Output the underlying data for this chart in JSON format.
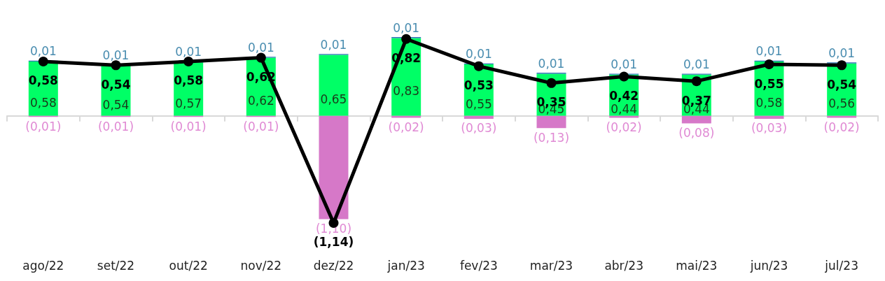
{
  "chart_data": {
    "type": "bar",
    "stacked": true,
    "tick_labels": "x",
    "grid": false,
    "categories": [
      "ago/22",
      "set/22",
      "out/22",
      "nov/22",
      "dez/22",
      "jan/23",
      "fev/23",
      "mar/23",
      "abr/23",
      "mai/23",
      "jun/23",
      "jul/23"
    ],
    "series": [
      {
        "color": "#00ff66",
        "values": [
          0.58,
          0.54,
          0.57,
          0.62,
          0.65,
          0.83,
          0.55,
          0.45,
          0.44,
          0.44,
          0.58,
          0.56
        ],
        "value_labels": [
          "0,58",
          "0,54",
          "0,57",
          "0,62",
          "0,65",
          "0,83",
          "0,55",
          "0,45",
          "0,44",
          "0,44",
          "0,58",
          "0,56"
        ]
      },
      {
        "color": "#2e75b6",
        "values": [
          0.01,
          0.01,
          0.01,
          0.01,
          0.01,
          0.01,
          0.01,
          0.01,
          0.01,
          0.01,
          0.01,
          0.01
        ],
        "value_labels": [
          "0,01",
          "0,01",
          "0,01",
          "0,01",
          "0,01",
          "0,01",
          "0,01",
          "0,01",
          "0,01",
          "0,01",
          "0,01",
          "0,01"
        ]
      },
      {
        "color": "#d678c8",
        "values": [
          -0.01,
          -0.01,
          -0.01,
          -0.01,
          -1.1,
          -0.02,
          -0.03,
          -0.13,
          -0.02,
          -0.08,
          -0.03,
          -0.02
        ],
        "value_labels": [
          "(0,01)",
          "(0,01)",
          "(0,01)",
          "(0,01)",
          "(1,10)",
          "(0,02)",
          "(0,03)",
          "(0,13)",
          "(0,02)",
          "(0,08)",
          "(0,03)",
          "(0,02)"
        ]
      },
      {
        "type": "line",
        "color": "#000000",
        "marker": "circle",
        "line_style": "solid",
        "values": [
          0.58,
          0.54,
          0.58,
          0.62,
          -1.14,
          0.82,
          0.53,
          0.35,
          0.42,
          0.37,
          0.55,
          0.54
        ],
        "value_labels": [
          "0,58",
          "0,54",
          "0,58",
          "0,62",
          "(1,14)",
          "0,82",
          "0,53",
          "0,35",
          "0,42",
          "0,37",
          "0,55",
          "0,54"
        ]
      }
    ]
  }
}
